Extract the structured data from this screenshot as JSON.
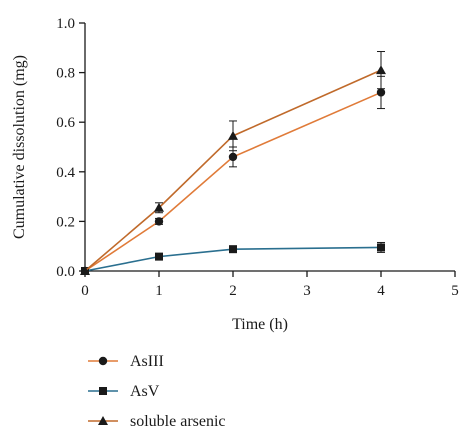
{
  "chart_data": {
    "type": "line",
    "x": [
      0,
      1,
      2,
      4
    ],
    "xlabel": "Time (h)",
    "ylabel": "Cumulative dissolution (mg)",
    "xlim": [
      0,
      5
    ],
    "ylim": [
      0,
      1.0
    ],
    "xticks": [
      "0",
      "1",
      "2",
      "3",
      "4",
      "5"
    ],
    "yticks": [
      "0.0",
      "0.2",
      "0.4",
      "0.6",
      "0.8",
      "1.0"
    ],
    "grid": false,
    "legend_position": "bottom-left",
    "series": [
      {
        "name": "AsIII",
        "marker": "circle",
        "color": "#e07b39",
        "values": [
          0,
          0.2,
          0.46,
          0.72
        ],
        "errors": [
          0,
          0.012,
          0.04,
          0.065
        ]
      },
      {
        "name": "AsV",
        "marker": "square",
        "color": "#2a6f8f",
        "values": [
          0,
          0.058,
          0.088,
          0.095
        ],
        "errors": [
          0,
          0.005,
          0.008,
          0.02
        ]
      },
      {
        "name": "soluble arsenic",
        "marker": "triangle",
        "color": "#c06a2b",
        "values": [
          0,
          0.255,
          0.545,
          0.81
        ],
        "errors": [
          0,
          0.02,
          0.06,
          0.075
        ]
      }
    ]
  }
}
